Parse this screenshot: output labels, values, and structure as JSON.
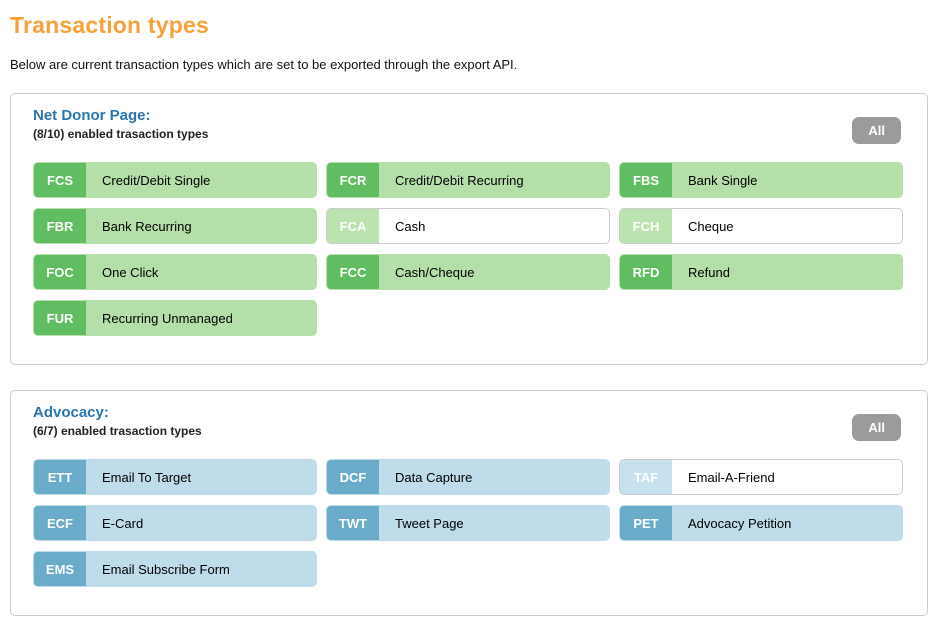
{
  "page": {
    "title": "Transaction types",
    "subtitle": "Below are current transaction types which are set to be exported through the export API."
  },
  "colors": {
    "title_orange": "#f8a139",
    "heading_blue": "#2a76ad",
    "green_badge": "#61bd61",
    "green_body": "#b5dfa9",
    "green_badge_disabled": "#bae3b0",
    "blue_badge": "#6aabca",
    "blue_body": "#bedcea",
    "blue_badge_disabled": "#c8e1ef",
    "all_button_gray": "#9b9b9b",
    "border_gray": "#cccccc"
  },
  "sections": [
    {
      "heading": "Net Donor Page:",
      "sub": "(8/10) enabled trasaction types",
      "all_label": "All",
      "theme": "green",
      "tiles": [
        {
          "code": "FCS",
          "label": "Credit/Debit Single",
          "enabled": true
        },
        {
          "code": "FCR",
          "label": "Credit/Debit Recurring",
          "enabled": true
        },
        {
          "code": "FBS",
          "label": "Bank Single",
          "enabled": true
        },
        {
          "code": "FBR",
          "label": "Bank Recurring",
          "enabled": true
        },
        {
          "code": "FCA",
          "label": "Cash",
          "enabled": false
        },
        {
          "code": "FCH",
          "label": "Cheque",
          "enabled": false
        },
        {
          "code": "FOC",
          "label": "One Click",
          "enabled": true
        },
        {
          "code": "FCC",
          "label": "Cash/Cheque",
          "enabled": true
        },
        {
          "code": "RFD",
          "label": "Refund",
          "enabled": true
        },
        {
          "code": "FUR",
          "label": "Recurring Unmanaged",
          "enabled": true
        }
      ]
    },
    {
      "heading": "Advocacy:",
      "sub": "(6/7) enabled trasaction types",
      "all_label": "All",
      "theme": "blue",
      "tiles": [
        {
          "code": "ETT",
          "label": "Email To Target",
          "enabled": true
        },
        {
          "code": "DCF",
          "label": "Data Capture",
          "enabled": true
        },
        {
          "code": "TAF",
          "label": "Email-A-Friend",
          "enabled": false
        },
        {
          "code": "ECF",
          "label": "E-Card",
          "enabled": true
        },
        {
          "code": "TWT",
          "label": "Tweet Page",
          "enabled": true
        },
        {
          "code": "PET",
          "label": "Advocacy Petition",
          "enabled": true
        },
        {
          "code": "EMS",
          "label": "Email Subscribe Form",
          "enabled": true
        }
      ]
    }
  ]
}
